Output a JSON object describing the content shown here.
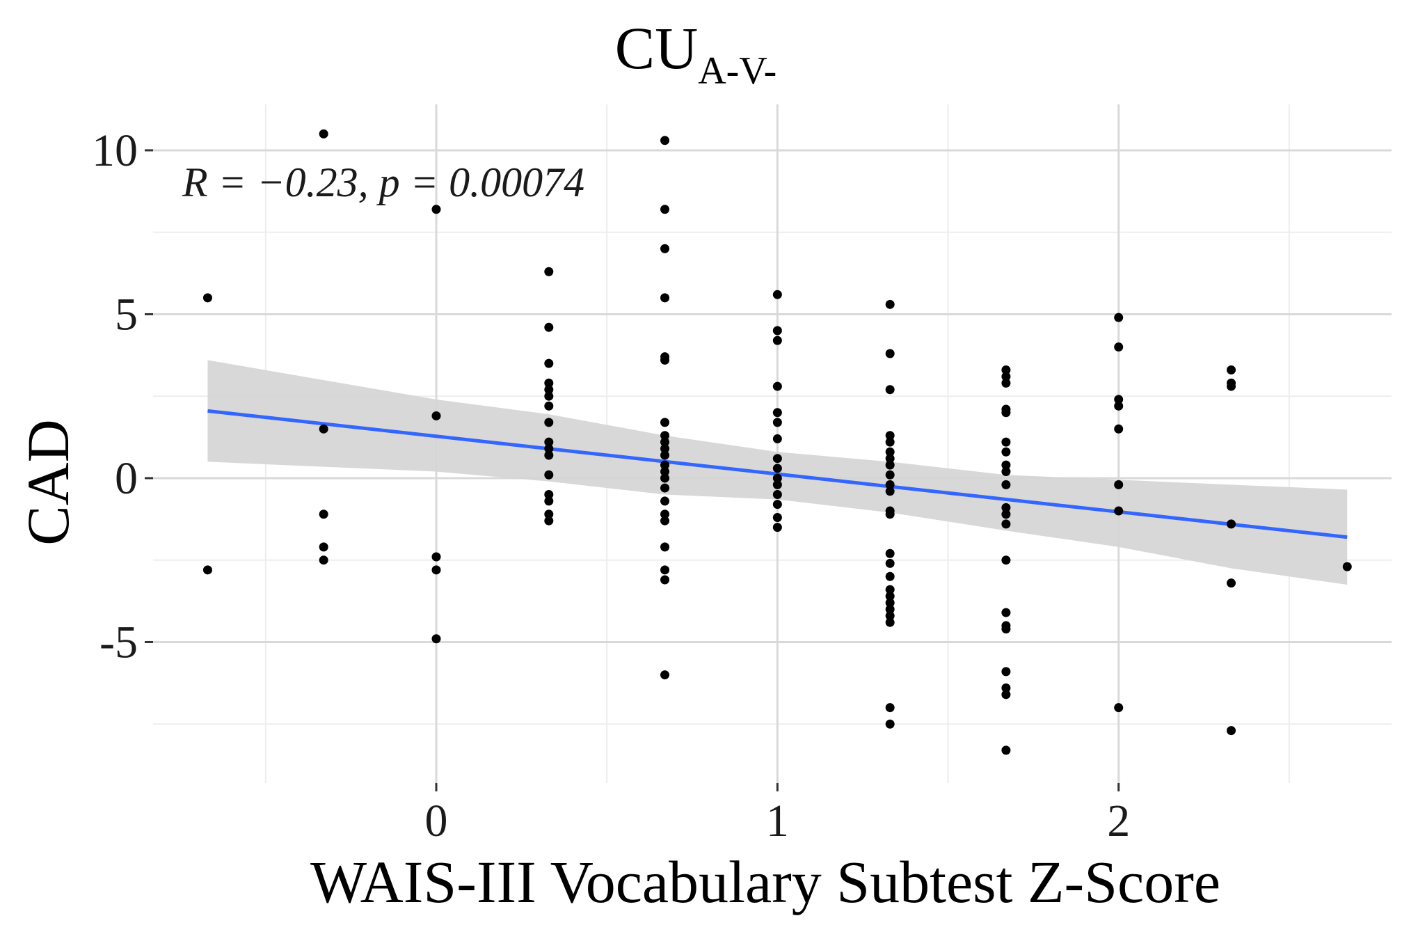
{
  "chart_data": {
    "type": "scatter",
    "title": "CU",
    "title_subscript": "A-V-",
    "xlabel": "WAIS-III Vocabulary Subtest Z-Score",
    "ylabel": "CAD",
    "xlim": [
      -0.83,
      2.8
    ],
    "ylim": [
      -9.3,
      11.4
    ],
    "x_ticks": [
      0,
      1,
      2
    ],
    "x_tick_labels": [
      "0",
      "1",
      "2"
    ],
    "y_ticks": [
      10,
      5,
      0,
      -5
    ],
    "y_tick_labels": [
      "10",
      "5",
      "0",
      "-5"
    ],
    "x_minor_ticks": [
      -0.5,
      0.5,
      1.5,
      2.5
    ],
    "y_minor_ticks": [
      7.5,
      2.5,
      -2.5,
      -7.5
    ],
    "grid": true,
    "annotation": "R = −0.23, p = 0.00074",
    "annotation_position": "top-left",
    "colors": {
      "points": "#000000",
      "fit_line": "#3366ff",
      "confidence_band": "#d4d4d4",
      "grid_major": "#d9d9d9",
      "grid_minor": "#ededed",
      "tick": "#333333"
    },
    "points": [
      {
        "x": -0.67,
        "y": 5.5
      },
      {
        "x": -0.67,
        "y": -2.8
      },
      {
        "x": -0.33,
        "y": 10.5
      },
      {
        "x": -0.33,
        "y": 1.5
      },
      {
        "x": -0.33,
        "y": -1.1
      },
      {
        "x": -0.33,
        "y": -2.1
      },
      {
        "x": -0.33,
        "y": -2.5
      },
      {
        "x": 0.0,
        "y": 8.2
      },
      {
        "x": 0.0,
        "y": 1.9
      },
      {
        "x": 0.0,
        "y": -2.4
      },
      {
        "x": 0.0,
        "y": -2.8
      },
      {
        "x": 0.0,
        "y": -4.9
      },
      {
        "x": 0.33,
        "y": 6.3
      },
      {
        "x": 0.33,
        "y": 4.6
      },
      {
        "x": 0.33,
        "y": 3.5
      },
      {
        "x": 0.33,
        "y": 2.9
      },
      {
        "x": 0.33,
        "y": 2.7
      },
      {
        "x": 0.33,
        "y": 2.5
      },
      {
        "x": 0.33,
        "y": 2.2
      },
      {
        "x": 0.33,
        "y": 1.7
      },
      {
        "x": 0.33,
        "y": 1.1
      },
      {
        "x": 0.33,
        "y": 0.9
      },
      {
        "x": 0.33,
        "y": 0.7
      },
      {
        "x": 0.33,
        "y": 0.1
      },
      {
        "x": 0.33,
        "y": -0.5
      },
      {
        "x": 0.33,
        "y": -0.7
      },
      {
        "x": 0.33,
        "y": -1.1
      },
      {
        "x": 0.33,
        "y": -1.3
      },
      {
        "x": 0.67,
        "y": 10.3
      },
      {
        "x": 0.67,
        "y": 8.2
      },
      {
        "x": 0.67,
        "y": 7.0
      },
      {
        "x": 0.67,
        "y": 5.5
      },
      {
        "x": 0.67,
        "y": 3.7
      },
      {
        "x": 0.67,
        "y": 3.6
      },
      {
        "x": 0.67,
        "y": 1.7
      },
      {
        "x": 0.67,
        "y": 1.3
      },
      {
        "x": 0.67,
        "y": 1.1
      },
      {
        "x": 0.67,
        "y": 0.9
      },
      {
        "x": 0.67,
        "y": 0.7
      },
      {
        "x": 0.67,
        "y": 0.4
      },
      {
        "x": 0.67,
        "y": 0.2
      },
      {
        "x": 0.67,
        "y": 0.0
      },
      {
        "x": 0.67,
        "y": -0.3
      },
      {
        "x": 0.67,
        "y": -0.7
      },
      {
        "x": 0.67,
        "y": -1.1
      },
      {
        "x": 0.67,
        "y": -1.3
      },
      {
        "x": 0.67,
        "y": -2.1
      },
      {
        "x": 0.67,
        "y": -2.8
      },
      {
        "x": 0.67,
        "y": -3.1
      },
      {
        "x": 0.67,
        "y": -6.0
      },
      {
        "x": 1.0,
        "y": 5.6
      },
      {
        "x": 1.0,
        "y": 4.5
      },
      {
        "x": 1.0,
        "y": 4.2
      },
      {
        "x": 1.0,
        "y": 2.8
      },
      {
        "x": 1.0,
        "y": 2.0
      },
      {
        "x": 1.0,
        "y": 1.7
      },
      {
        "x": 1.0,
        "y": 1.2
      },
      {
        "x": 1.0,
        "y": 0.6
      },
      {
        "x": 1.0,
        "y": 0.3
      },
      {
        "x": 1.0,
        "y": 0.0
      },
      {
        "x": 1.0,
        "y": -0.2
      },
      {
        "x": 1.0,
        "y": -0.5
      },
      {
        "x": 1.0,
        "y": -0.8
      },
      {
        "x": 1.0,
        "y": -1.2
      },
      {
        "x": 1.0,
        "y": -1.5
      },
      {
        "x": 1.33,
        "y": 5.3
      },
      {
        "x": 1.33,
        "y": 3.8
      },
      {
        "x": 1.33,
        "y": 2.7
      },
      {
        "x": 1.33,
        "y": 1.3
      },
      {
        "x": 1.33,
        "y": 1.1
      },
      {
        "x": 1.33,
        "y": 0.8
      },
      {
        "x": 1.33,
        "y": 0.6
      },
      {
        "x": 1.33,
        "y": 0.4
      },
      {
        "x": 1.33,
        "y": 0.1
      },
      {
        "x": 1.33,
        "y": -0.2
      },
      {
        "x": 1.33,
        "y": -0.4
      },
      {
        "x": 1.33,
        "y": -1.0
      },
      {
        "x": 1.33,
        "y": -1.1
      },
      {
        "x": 1.33,
        "y": -2.3
      },
      {
        "x": 1.33,
        "y": -2.6
      },
      {
        "x": 1.33,
        "y": -3.0
      },
      {
        "x": 1.33,
        "y": -3.4
      },
      {
        "x": 1.33,
        "y": -3.6
      },
      {
        "x": 1.33,
        "y": -3.8
      },
      {
        "x": 1.33,
        "y": -4.0
      },
      {
        "x": 1.33,
        "y": -4.2
      },
      {
        "x": 1.33,
        "y": -4.4
      },
      {
        "x": 1.33,
        "y": -7.0
      },
      {
        "x": 1.33,
        "y": -7.5
      },
      {
        "x": 1.67,
        "y": 3.3
      },
      {
        "x": 1.67,
        "y": 3.1
      },
      {
        "x": 1.67,
        "y": 2.9
      },
      {
        "x": 1.67,
        "y": 2.1
      },
      {
        "x": 1.67,
        "y": 2.0
      },
      {
        "x": 1.67,
        "y": 1.1
      },
      {
        "x": 1.67,
        "y": 0.8
      },
      {
        "x": 1.67,
        "y": 0.4
      },
      {
        "x": 1.67,
        "y": 0.2
      },
      {
        "x": 1.67,
        "y": -0.2
      },
      {
        "x": 1.67,
        "y": -0.9
      },
      {
        "x": 1.67,
        "y": -1.1
      },
      {
        "x": 1.67,
        "y": -1.4
      },
      {
        "x": 1.67,
        "y": -2.5
      },
      {
        "x": 1.67,
        "y": -4.1
      },
      {
        "x": 1.67,
        "y": -4.5
      },
      {
        "x": 1.67,
        "y": -4.6
      },
      {
        "x": 1.67,
        "y": -5.9
      },
      {
        "x": 1.67,
        "y": -6.4
      },
      {
        "x": 1.67,
        "y": -6.6
      },
      {
        "x": 1.67,
        "y": -8.3
      },
      {
        "x": 2.0,
        "y": 4.9
      },
      {
        "x": 2.0,
        "y": 4.0
      },
      {
        "x": 2.0,
        "y": 2.4
      },
      {
        "x": 2.0,
        "y": 2.2
      },
      {
        "x": 2.0,
        "y": 1.5
      },
      {
        "x": 2.0,
        "y": -0.2
      },
      {
        "x": 2.0,
        "y": -1.0
      },
      {
        "x": 2.0,
        "y": -7.0
      },
      {
        "x": 2.33,
        "y": 3.3
      },
      {
        "x": 2.33,
        "y": 2.9
      },
      {
        "x": 2.33,
        "y": 2.8
      },
      {
        "x": 2.33,
        "y": -1.4
      },
      {
        "x": 2.33,
        "y": -3.2
      },
      {
        "x": 2.33,
        "y": -7.7
      },
      {
        "x": 2.67,
        "y": -2.7
      }
    ],
    "fit_line": {
      "x": [
        -0.67,
        2.67
      ],
      "y": [
        2.05,
        -1.8
      ]
    },
    "confidence_band": {
      "x": [
        -0.67,
        0.0,
        0.33,
        0.67,
        1.0,
        1.33,
        1.67,
        2.0,
        2.33,
        2.67
      ],
      "upper": [
        3.6,
        2.4,
        1.95,
        1.3,
        0.8,
        0.5,
        0.1,
        -0.05,
        -0.2,
        -0.35
      ],
      "lower": [
        0.5,
        0.2,
        -0.1,
        -0.5,
        -0.65,
        -1.05,
        -1.6,
        -2.1,
        -2.75,
        -3.25
      ]
    }
  }
}
